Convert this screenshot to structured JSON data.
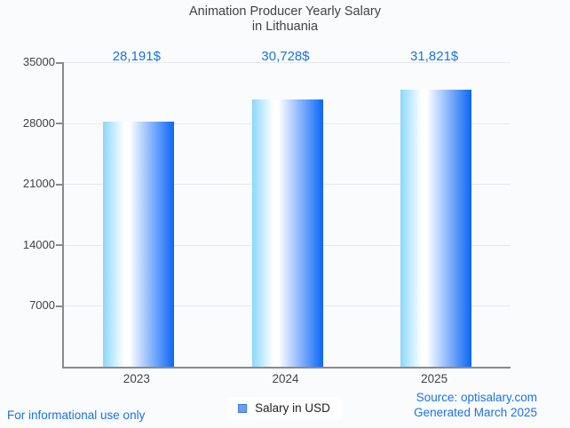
{
  "title": {
    "line1": "Animation Producer Yearly Salary",
    "line2": "in Lithuania"
  },
  "chart_data": {
    "type": "bar",
    "title": "Animation Producer Yearly Salary in Lithuania",
    "categories": [
      "2023",
      "2024",
      "2025"
    ],
    "values": [
      28191,
      30728,
      31821
    ],
    "value_labels": [
      "28,191$",
      "30,728$",
      "31,821$"
    ],
    "xlabel": "",
    "ylabel": "",
    "ylim": [
      0,
      35000
    ],
    "yticks": [
      7000,
      14000,
      21000,
      28000,
      35000
    ],
    "grid": true,
    "legend_entries": [
      "Salary in USD"
    ],
    "legend_position": "bottom"
  },
  "legend": {
    "label": "Salary in USD"
  },
  "footer": {
    "disclaimer": "For informational use only",
    "source": "Source: optisalary.com",
    "generated": "Generated March 2025"
  },
  "colors": {
    "background": "#fafbfd",
    "accent_text": "#1a73e8",
    "title_text": "#424242",
    "axis": "#8a8a8a",
    "gridline": "#e6e8ec",
    "bar_gradient_left": "#8bd8fa",
    "bar_gradient_mid": "#ffffff",
    "bar_gradient_right": "#0b66f7",
    "legend_marker_fill": "#6d9eeb",
    "legend_marker_border": "#3b78d8"
  }
}
